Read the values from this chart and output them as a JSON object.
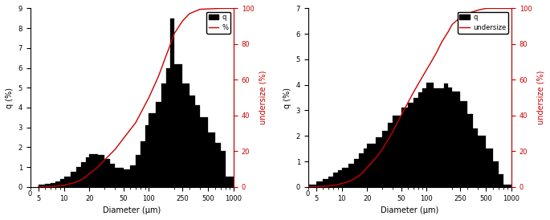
{
  "plot1": {
    "xlabel": "Diameter (μm)",
    "ylabel_left": "q (%)",
    "ylabel_right": "undersize (%)",
    "legend_bar": "q",
    "legend_line": "%",
    "ylim_left": [
      0,
      9
    ],
    "ylim_right": [
      0,
      100
    ],
    "yticks_left": [
      0,
      1,
      2,
      3,
      4,
      5,
      6,
      7,
      8,
      9
    ],
    "yticks_right": [
      0,
      20,
      40,
      60,
      80,
      100
    ],
    "bar_edges": [
      5,
      6,
      7,
      8,
      9,
      10,
      12,
      14,
      16,
      18,
      20,
      25,
      30,
      35,
      40,
      50,
      60,
      70,
      80,
      90,
      100,
      120,
      140,
      160,
      180,
      200,
      250,
      300,
      350,
      400,
      500,
      600,
      700,
      800,
      1000
    ],
    "bar_heights": [
      0.1,
      0.15,
      0.2,
      0.28,
      0.38,
      0.5,
      0.75,
      1.0,
      1.25,
      1.5,
      1.65,
      1.6,
      1.4,
      1.15,
      0.95,
      0.9,
      1.1,
      1.6,
      2.3,
      3.1,
      3.7,
      4.3,
      5.2,
      6.0,
      8.5,
      6.2,
      5.2,
      4.6,
      4.1,
      3.5,
      2.75,
      2.2,
      1.8,
      0.5
    ],
    "undersize_x": [
      5,
      6,
      7,
      8,
      9,
      10,
      12,
      14,
      16,
      18,
      20,
      25,
      30,
      40,
      50,
      70,
      100,
      130,
      150,
      180,
      200,
      250,
      300,
      400,
      700,
      1000
    ],
    "undersize_y": [
      0.0,
      0.1,
      0.2,
      0.4,
      0.65,
      1.0,
      1.8,
      2.8,
      4.0,
      5.5,
      7.5,
      11,
      15,
      21,
      27,
      36,
      50,
      62,
      70,
      80,
      86,
      93,
      97,
      99.5,
      100,
      100
    ]
  },
  "plot2": {
    "xlabel": "Diameter (μm)",
    "ylabel_left": "q (%)",
    "ylabel_right": "undersize (%)",
    "legend_bar": "q",
    "legend_line": "undersize",
    "ylim_left": [
      0,
      7
    ],
    "ylim_right": [
      0,
      100
    ],
    "yticks_left": [
      0,
      1,
      2,
      3,
      4,
      5,
      6,
      7
    ],
    "yticks_right": [
      0,
      20,
      40,
      60,
      80,
      100
    ],
    "bar_edges": [
      3,
      4,
      5,
      6,
      7,
      8,
      9,
      10,
      12,
      14,
      16,
      18,
      20,
      25,
      30,
      35,
      40,
      50,
      60,
      70,
      80,
      90,
      100,
      120,
      140,
      160,
      180,
      200,
      250,
      300,
      350,
      400,
      500,
      600,
      700,
      800,
      1000
    ],
    "bar_heights": [
      0.05,
      0.1,
      0.2,
      0.3,
      0.4,
      0.55,
      0.65,
      0.75,
      0.9,
      1.1,
      1.3,
      1.5,
      1.7,
      1.95,
      2.2,
      2.5,
      2.8,
      3.1,
      3.3,
      3.5,
      3.7,
      3.85,
      4.1,
      3.85,
      3.85,
      4.05,
      3.9,
      3.75,
      3.35,
      2.85,
      2.3,
      2.0,
      1.5,
      1.0,
      0.5,
      0.1
    ],
    "undersize_x": [
      3,
      4,
      5,
      6,
      7,
      8,
      9,
      10,
      12,
      14,
      16,
      18,
      20,
      25,
      30,
      40,
      50,
      70,
      90,
      110,
      130,
      150,
      180,
      200,
      250,
      300,
      400,
      500,
      700,
      1000
    ],
    "undersize_y": [
      0,
      0.05,
      0.15,
      0.3,
      0.55,
      0.9,
      1.3,
      1.9,
      3.0,
      4.5,
      6.2,
      8.5,
      11,
      16,
      21,
      31,
      40,
      53,
      62,
      69,
      75,
      81,
      87,
      91,
      95,
      97,
      99,
      100,
      100,
      100
    ]
  },
  "bar_color": "#000000",
  "line_color": "#cc0000",
  "background_color": "#ffffff",
  "axis_color": "#000000",
  "xtick_labels": [
    "0",
    "5",
    "10",
    "20",
    "50",
    "100",
    "250",
    "500",
    "1000"
  ],
  "xtick_log_positions": [
    5,
    10,
    20,
    50,
    100,
    250,
    500,
    1000
  ]
}
